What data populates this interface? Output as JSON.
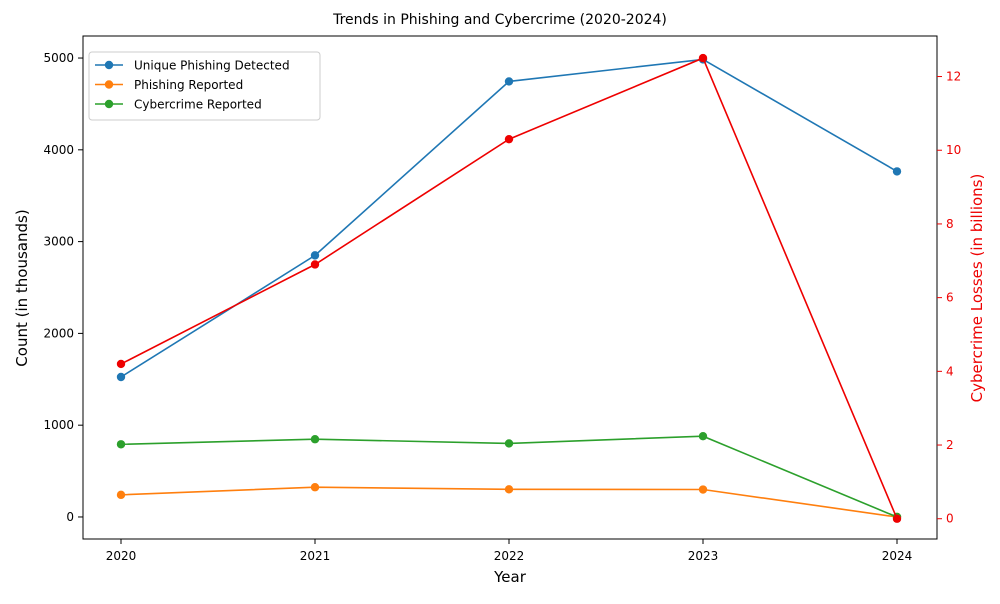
{
  "chart_data": {
    "type": "line",
    "title": "Trends in Phishing and Cybercrime (2020-2024)",
    "xlabel": "Year",
    "ylabel": "Count (in thousands)",
    "y2label": "Cybercrime Losses (in billions)",
    "categories": [
      "2020",
      "2021",
      "2022",
      "2023",
      "2024"
    ],
    "ylim": [
      -240,
      5240
    ],
    "yticks": [
      0,
      1000,
      2000,
      3000,
      4000,
      5000
    ],
    "y2lim": [
      -0.55,
      13.1
    ],
    "y2ticks": [
      0,
      2,
      4,
      6,
      8,
      10,
      12
    ],
    "legend_position": "upper-left",
    "grid": false,
    "series": [
      {
        "name": "Unique Phishing Detected",
        "axis": "left",
        "color": "#1f77b4",
        "values": [
          1525,
          2850,
          4745,
          4985,
          3765
        ]
      },
      {
        "name": "Phishing Reported",
        "axis": "left",
        "color": "#ff7f0e",
        "values": [
          241,
          324,
          301,
          299,
          0
        ]
      },
      {
        "name": "Cybercrime Reported",
        "axis": "left",
        "color": "#2ca02c",
        "values": [
          792,
          847,
          801,
          880,
          0
        ]
      },
      {
        "name": "",
        "axis": "right",
        "color": "#ee0000",
        "values": [
          4.2,
          6.9,
          10.3,
          12.5,
          0
        ]
      }
    ]
  }
}
